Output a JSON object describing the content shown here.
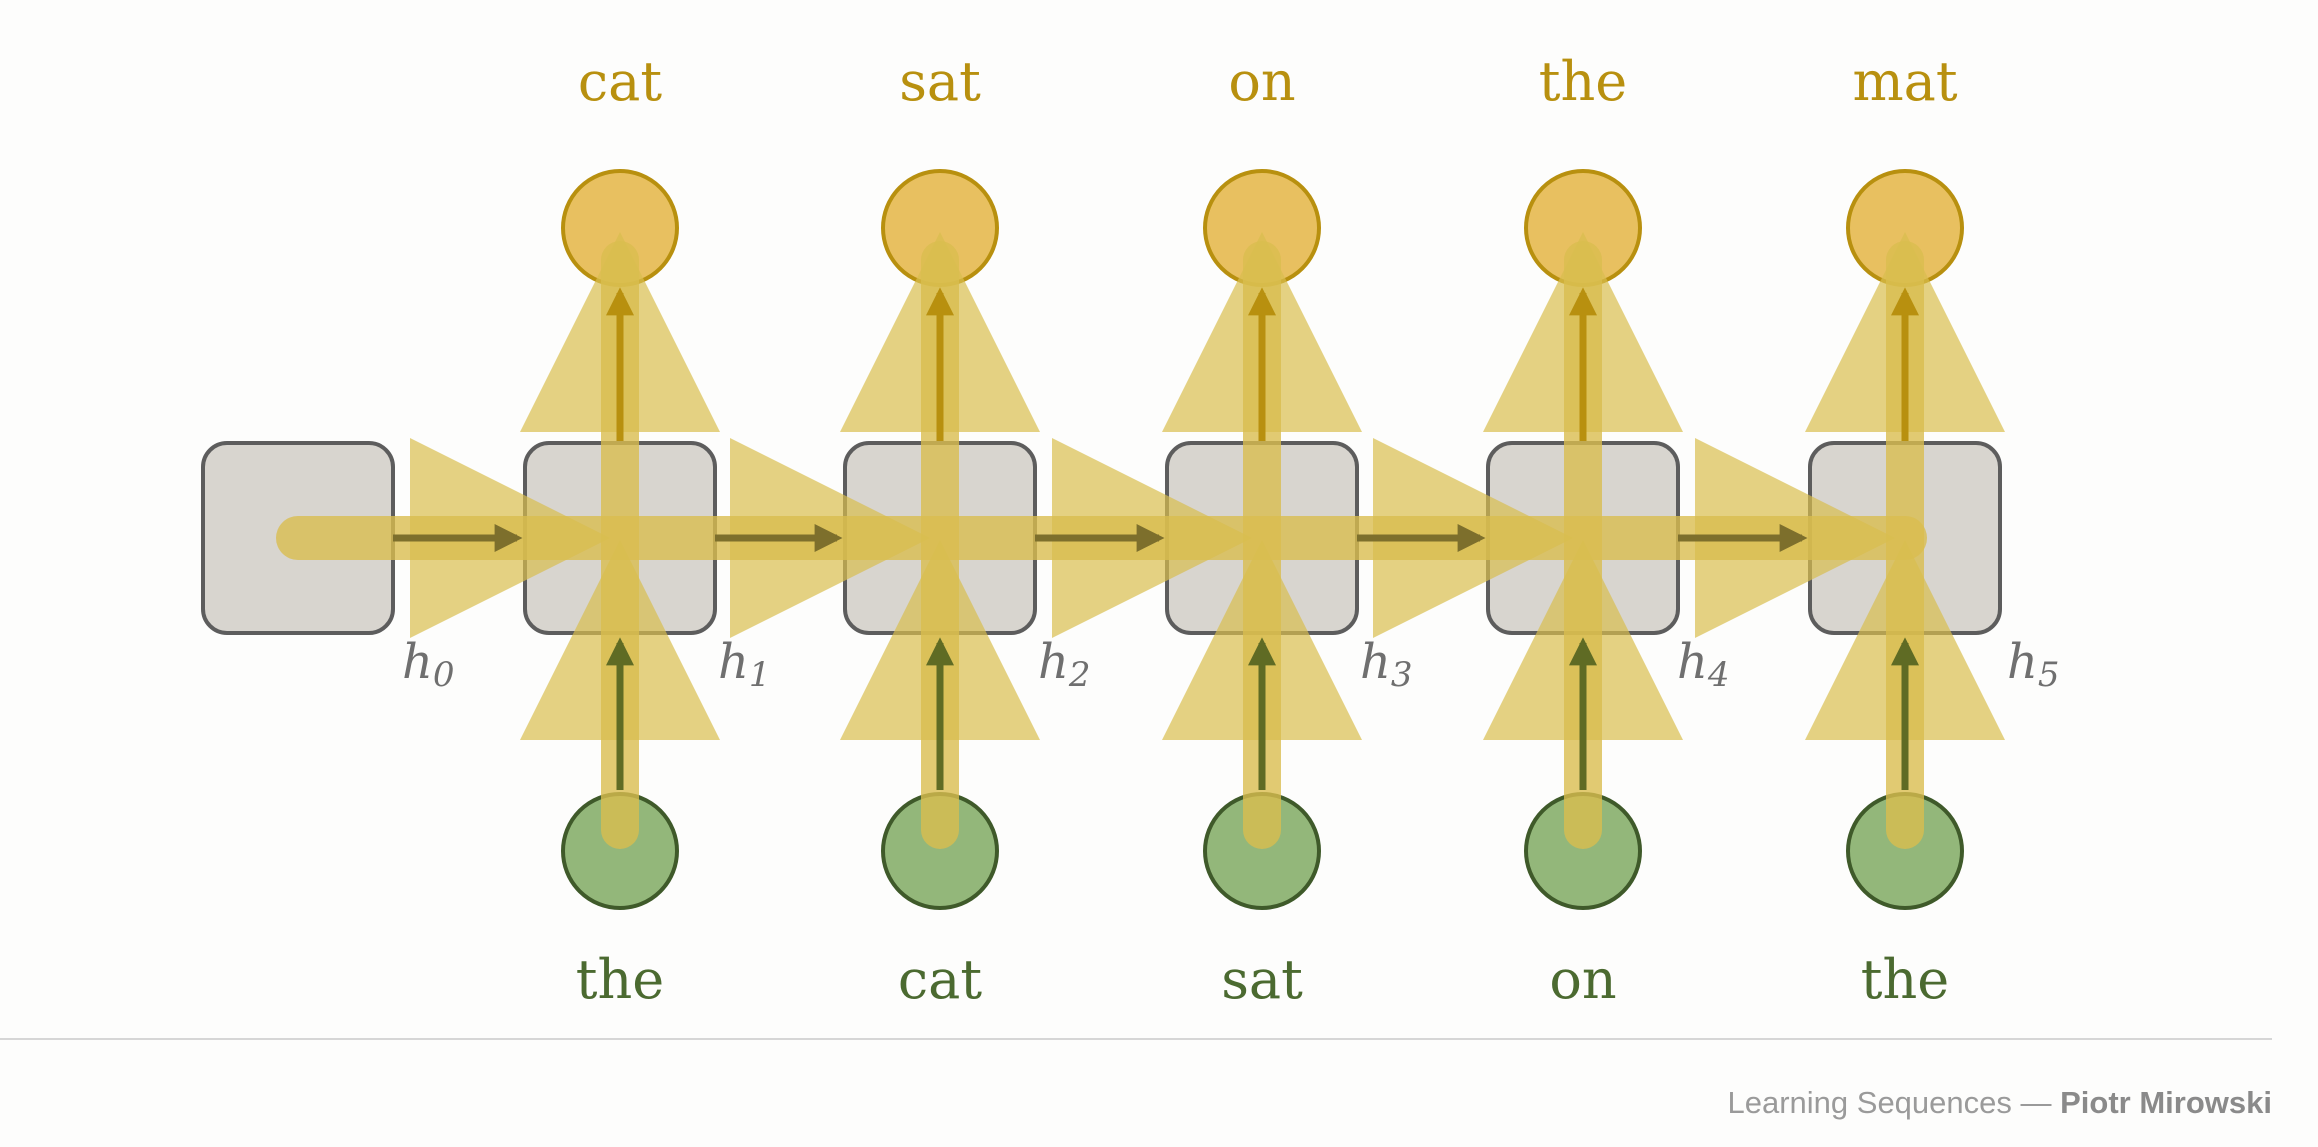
{
  "diagram": {
    "outputs": [
      "cat",
      "sat",
      "on",
      "the",
      "mat"
    ],
    "inputs": [
      "the",
      "cat",
      "sat",
      "on",
      "the"
    ],
    "hidden_states": [
      {
        "letter": "h",
        "index": "0"
      },
      {
        "letter": "h",
        "index": "1"
      },
      {
        "letter": "h",
        "index": "2"
      },
      {
        "letter": "h",
        "index": "3"
      },
      {
        "letter": "h",
        "index": "4"
      },
      {
        "letter": "h",
        "index": "5"
      }
    ],
    "colors": {
      "output_node": "#e8c060",
      "output_stroke": "#b8900f",
      "input_node": "#93b77a",
      "input_stroke": "#3f5a2a",
      "cell_fill": "#d8d5cf",
      "cell_stroke": "#5d5d5d",
      "highlight": "#d9bd4f",
      "arrow_output": "#b8900f",
      "arrow_hidden": "#7d6f2c",
      "arrow_input": "#5f6b24"
    }
  },
  "footer": {
    "title": "Learning Sequences — ",
    "author": "Piotr Mirowski"
  }
}
